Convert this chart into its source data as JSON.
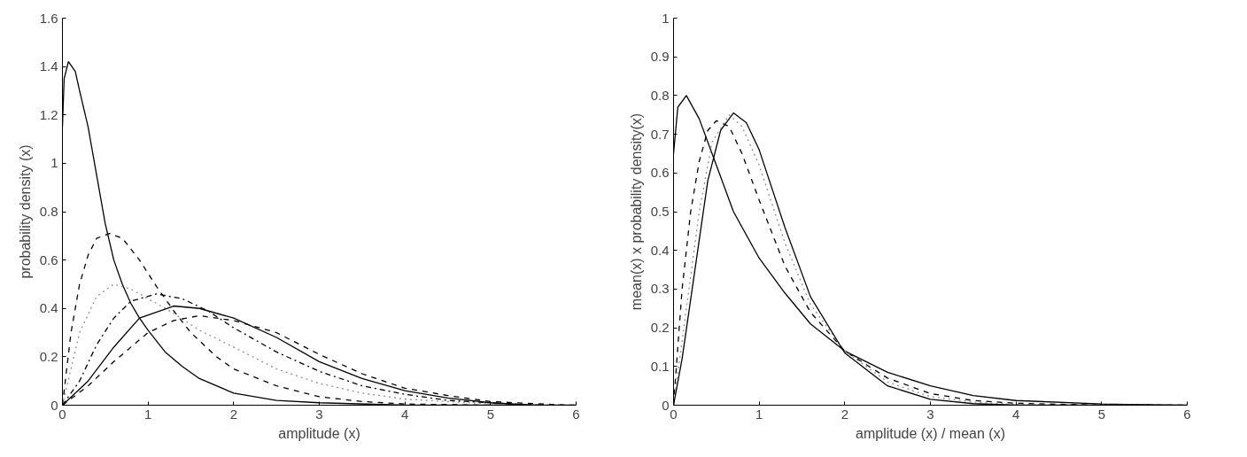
{
  "chart_data": [
    {
      "type": "line",
      "xlabel": "amplitude (x)",
      "ylabel": "probability density (x)",
      "xlim": [
        0,
        6
      ],
      "ylim": [
        0,
        1.6
      ],
      "xticks": [
        0,
        1,
        2,
        3,
        4,
        5,
        6
      ],
      "yticks": [
        0,
        0.2,
        0.4,
        0.6,
        0.8,
        1,
        1.2,
        1.4,
        1.6
      ],
      "grid": false,
      "marker": "none",
      "series": [
        {
          "color": "#000000",
          "line_style": "solid",
          "x": [
            0,
            0.02,
            0.07,
            0.15,
            0.2,
            0.3,
            0.4,
            0.5,
            0.6,
            0.7,
            0.8,
            0.9,
            1.0,
            1.2,
            1.4,
            1.6,
            2.0,
            2.5,
            3,
            4,
            6
          ],
          "values": [
            1.15,
            1.35,
            1.42,
            1.38,
            1.3,
            1.15,
            0.95,
            0.75,
            0.6,
            0.5,
            0.42,
            0.36,
            0.31,
            0.22,
            0.16,
            0.11,
            0.05,
            0.02,
            0.01,
            0,
            0
          ]
        },
        {
          "color": "#000000",
          "line_style": "dashed",
          "x": [
            0,
            0.1,
            0.2,
            0.3,
            0.4,
            0.55,
            0.7,
            0.9,
            1.1,
            1.3,
            1.5,
            1.8,
            2,
            2.5,
            3,
            3.5,
            4,
            5,
            6
          ],
          "values": [
            0,
            0.3,
            0.5,
            0.62,
            0.69,
            0.71,
            0.69,
            0.6,
            0.49,
            0.39,
            0.3,
            0.2,
            0.15,
            0.08,
            0.035,
            0.015,
            0.005,
            0,
            0
          ]
        },
        {
          "color": "#909090",
          "line_style": "dotted",
          "x": [
            0,
            0.2,
            0.4,
            0.6,
            0.8,
            1.0,
            1.3,
            1.6,
            2,
            2.5,
            3,
            3.5,
            4,
            5,
            5.8
          ],
          "values": [
            0,
            0.3,
            0.45,
            0.5,
            0.48,
            0.44,
            0.38,
            0.31,
            0.24,
            0.15,
            0.09,
            0.05,
            0.025,
            0.005,
            0
          ]
        },
        {
          "color": "#000000",
          "line_style": "dashdot",
          "x": [
            0,
            0.2,
            0.4,
            0.6,
            0.8,
            1.1,
            1.4,
            1.7,
            2,
            2.5,
            3,
            3.5,
            4,
            4.5,
            5,
            5.6
          ],
          "values": [
            0,
            0.1,
            0.25,
            0.36,
            0.43,
            0.46,
            0.44,
            0.39,
            0.32,
            0.22,
            0.14,
            0.08,
            0.045,
            0.02,
            0.01,
            0
          ]
        },
        {
          "color": "#000000",
          "line_style": "solid",
          "x": [
            0,
            0.3,
            0.6,
            0.9,
            1.3,
            1.6,
            2,
            2.5,
            3,
            3.5,
            4,
            4.5,
            5,
            5.5
          ],
          "values": [
            0,
            0.1,
            0.24,
            0.36,
            0.41,
            0.4,
            0.36,
            0.28,
            0.18,
            0.11,
            0.06,
            0.03,
            0.01,
            0
          ]
        },
        {
          "color": "#000000",
          "line_style": "dashed",
          "x": [
            0,
            0.3,
            0.6,
            1,
            1.3,
            1.6,
            2,
            2.5,
            3,
            3.5,
            4,
            4.5,
            5,
            5.9
          ],
          "values": [
            0,
            0.08,
            0.18,
            0.3,
            0.35,
            0.37,
            0.35,
            0.3,
            0.21,
            0.13,
            0.07,
            0.04,
            0.015,
            0
          ]
        }
      ]
    },
    {
      "type": "line",
      "xlabel": "amplitude (x) / mean (x)",
      "ylabel": "mean(x) x probability density(x)",
      "xlim": [
        0,
        6
      ],
      "ylim": [
        0,
        1
      ],
      "xticks": [
        0,
        1,
        2,
        3,
        4,
        5,
        6
      ],
      "yticks": [
        0,
        0.1,
        0.2,
        0.3,
        0.4,
        0.5,
        0.6,
        0.7,
        0.8,
        0.9,
        1
      ],
      "grid": false,
      "marker": "none",
      "series": [
        {
          "color": "#000000",
          "line_style": "solid",
          "x": [
            0,
            0.05,
            0.15,
            0.3,
            0.5,
            0.7,
            1.0,
            1.3,
            1.6,
            2,
            2.5,
            3,
            3.5,
            4,
            5,
            6
          ],
          "values": [
            0.65,
            0.77,
            0.8,
            0.74,
            0.62,
            0.5,
            0.38,
            0.29,
            0.21,
            0.14,
            0.085,
            0.05,
            0.025,
            0.012,
            0.003,
            0
          ]
        },
        {
          "color": "#000000",
          "line_style": "dashed",
          "x": [
            0,
            0.1,
            0.2,
            0.3,
            0.4,
            0.5,
            0.65,
            0.8,
            1.0,
            1.3,
            1.6,
            2,
            2.5,
            3,
            3.5,
            4,
            5,
            6
          ],
          "values": [
            0,
            0.3,
            0.5,
            0.63,
            0.71,
            0.735,
            0.72,
            0.65,
            0.53,
            0.36,
            0.24,
            0.14,
            0.07,
            0.03,
            0.012,
            0.005,
            0,
            0
          ]
        },
        {
          "color": "#909090",
          "line_style": "dotted",
          "x": [
            0,
            0.15,
            0.3,
            0.45,
            0.65,
            0.8,
            1.0,
            1.3,
            1.6,
            2,
            2.5,
            3,
            3.5,
            4,
            5.8
          ],
          "values": [
            0,
            0.25,
            0.5,
            0.68,
            0.75,
            0.72,
            0.62,
            0.42,
            0.26,
            0.14,
            0.06,
            0.022,
            0.008,
            0.002,
            0
          ]
        },
        {
          "color": "#000000",
          "line_style": "solid",
          "x": [
            0,
            0.1,
            0.25,
            0.4,
            0.55,
            0.7,
            0.85,
            1.0,
            1.3,
            1.6,
            2,
            2.5,
            3,
            3.5,
            4,
            5.6
          ],
          "values": [
            0,
            0.12,
            0.35,
            0.58,
            0.71,
            0.755,
            0.73,
            0.66,
            0.46,
            0.28,
            0.135,
            0.05,
            0.015,
            0.004,
            0,
            0
          ]
        }
      ]
    }
  ]
}
